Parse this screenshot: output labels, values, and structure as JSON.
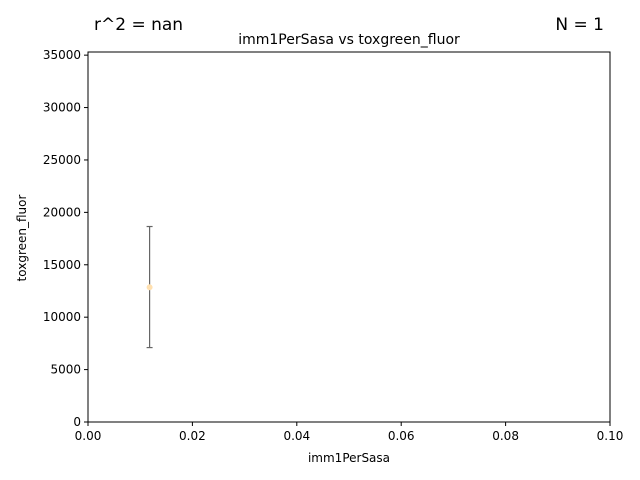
{
  "chart_data": {
    "type": "scatter",
    "title": "imm1PerSasa vs toxgreen_fluor",
    "xlabel": "imm1PerSasa",
    "ylabel": "toxgreen_fluor",
    "annotation_left": "r^2 = nan",
    "annotation_right": "N = 1",
    "xlim": [
      0,
      0.1
    ],
    "ylim": [
      0,
      35300
    ],
    "x_ticks": [
      0,
      0.02,
      0.04,
      0.06,
      0.08,
      0.1
    ],
    "x_tick_labels": [
      "0.00",
      "0.02",
      "0.04",
      "0.06",
      "0.08",
      "0.10"
    ],
    "y_ticks": [
      0,
      5000,
      10000,
      15000,
      20000,
      25000,
      30000,
      35000
    ],
    "y_tick_labels": [
      "0",
      "5000",
      "10000",
      "15000",
      "20000",
      "25000",
      "30000",
      "35000"
    ],
    "grid": false,
    "points": [
      {
        "x": 0.0118,
        "y": 12850,
        "err_low": 7100,
        "err_high": 18650
      }
    ],
    "colors": {
      "point": "#ffe0b0",
      "errorbar": "#666666",
      "axis": "#000000"
    }
  }
}
